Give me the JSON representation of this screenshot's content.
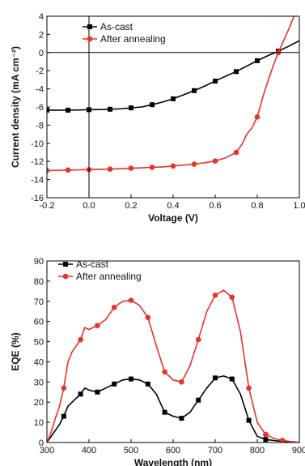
{
  "chart_data": [
    {
      "type": "line",
      "xlabel": "Voltage (V)",
      "ylabel": "Current density (mA cm⁻²)",
      "xlim": [
        -0.2,
        1.0
      ],
      "ylim": [
        -16,
        4
      ],
      "x_ticks": [
        "-0.2",
        "0.0",
        "0.2",
        "0.4",
        "0.6",
        "0.8",
        "1.0"
      ],
      "y_ticks": [
        "4",
        "2",
        "0",
        "-2",
        "-4",
        "-6",
        "-8",
        "-10",
        "-12",
        "-14",
        "-16"
      ],
      "grid": false,
      "legend_position": "top-left",
      "zero_lines": true,
      "series": [
        {
          "name": "As-cast",
          "color": "#000000",
          "marker": "square",
          "x": [
            -0.2,
            -0.15,
            -0.1,
            -0.05,
            0.0,
            0.05,
            0.1,
            0.15,
            0.2,
            0.25,
            0.3,
            0.35,
            0.4,
            0.45,
            0.5,
            0.55,
            0.6,
            0.65,
            0.7,
            0.75,
            0.8,
            0.85,
            0.9,
            0.95,
            1.0
          ],
          "y": [
            -6.35,
            -6.35,
            -6.35,
            -6.33,
            -6.3,
            -6.28,
            -6.25,
            -6.2,
            -6.1,
            -6.0,
            -5.75,
            -5.45,
            -5.1,
            -4.65,
            -4.2,
            -3.7,
            -3.15,
            -2.6,
            -2.1,
            -1.5,
            -0.9,
            -0.35,
            0.15,
            0.7,
            1.3
          ],
          "marker_x": [
            -0.2,
            -0.1,
            0.0,
            0.1,
            0.2,
            0.3,
            0.4,
            0.5,
            0.6,
            0.7,
            0.8,
            0.9
          ]
        },
        {
          "name": "After annealing",
          "color": "#e8322b",
          "marker": "circle",
          "x": [
            -0.2,
            -0.15,
            -0.1,
            -0.05,
            0.0,
            0.05,
            0.1,
            0.15,
            0.2,
            0.25,
            0.3,
            0.35,
            0.4,
            0.45,
            0.5,
            0.55,
            0.6,
            0.65,
            0.7,
            0.725,
            0.75,
            0.775,
            0.8,
            0.825,
            0.85,
            0.875,
            0.9,
            0.925,
            0.95,
            0.975
          ],
          "y": [
            -13.0,
            -12.98,
            -12.95,
            -12.93,
            -12.9,
            -12.87,
            -12.85,
            -12.8,
            -12.75,
            -12.7,
            -12.65,
            -12.6,
            -12.5,
            -12.4,
            -12.3,
            -12.15,
            -11.95,
            -11.6,
            -11.0,
            -10.2,
            -9.0,
            -8.3,
            -7.1,
            -5.0,
            -3.2,
            -1.5,
            0.0,
            1.3,
            2.6,
            4.0
          ],
          "marker_x": [
            -0.2,
            -0.1,
            0.0,
            0.1,
            0.2,
            0.3,
            0.4,
            0.5,
            0.6,
            0.7,
            0.8,
            0.9
          ]
        }
      ]
    },
    {
      "type": "line",
      "xlabel": "Wavelength (nm)",
      "ylabel": "EQE (%)",
      "xlim": [
        300,
        900
      ],
      "ylim": [
        0,
        90
      ],
      "x_ticks": [
        "300",
        "400",
        "500",
        "600",
        "700",
        "800",
        "900"
      ],
      "y_ticks": [
        "90",
        "80",
        "70",
        "60",
        "50",
        "40",
        "30",
        "20",
        "10",
        "0"
      ],
      "grid": false,
      "legend_position": "top-left",
      "series": [
        {
          "name": "As-cast",
          "color": "#000000",
          "marker": "square",
          "x": [
            300,
            310,
            320,
            330,
            340,
            350,
            360,
            370,
            380,
            390,
            400,
            420,
            440,
            460,
            480,
            500,
            520,
            540,
            560,
            580,
            600,
            620,
            640,
            660,
            680,
            700,
            720,
            740,
            760,
            780,
            800,
            820,
            840,
            860,
            880,
            900
          ],
          "y": [
            0,
            3,
            6,
            9,
            13,
            18,
            20,
            22,
            24,
            27,
            26,
            25,
            27,
            29,
            31,
            31.5,
            31,
            29,
            24,
            15,
            13,
            12,
            15,
            21,
            27,
            32,
            33,
            31.5,
            24,
            11,
            3,
            1.5,
            1,
            0.5,
            0.2,
            0
          ],
          "marker_x": [
            340,
            380,
            420,
            460,
            500,
            540,
            580,
            620,
            660,
            700,
            740,
            780,
            820,
            860
          ]
        },
        {
          "name": "After annealing",
          "color": "#e8322b",
          "marker": "circle",
          "x": [
            300,
            310,
            320,
            330,
            340,
            350,
            360,
            370,
            380,
            390,
            400,
            420,
            440,
            460,
            480,
            500,
            520,
            540,
            560,
            580,
            600,
            620,
            640,
            660,
            680,
            700,
            720,
            740,
            760,
            780,
            800,
            820,
            840,
            860,
            880,
            900
          ],
          "y": [
            0,
            5,
            12,
            18,
            27,
            40,
            45,
            48,
            51,
            57,
            56,
            58,
            61,
            67,
            70,
            70.5,
            68,
            62,
            48,
            35,
            31,
            30,
            38,
            51,
            65,
            73,
            75.5,
            72,
            55,
            27,
            10,
            4,
            2,
            1,
            0.5,
            0
          ],
          "marker_x": [
            340,
            380,
            420,
            460,
            500,
            540,
            580,
            620,
            660,
            700,
            740,
            780,
            820,
            860
          ]
        }
      ]
    }
  ]
}
